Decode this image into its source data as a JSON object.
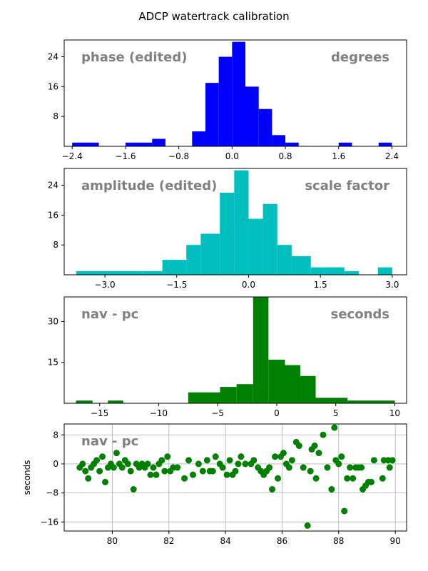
{
  "figure_title": "ADCP watertrack calibration",
  "chart_data": [
    {
      "type": "bar",
      "name": "phase",
      "color": "#0000ff",
      "annotation_left": "phase (edited)",
      "annotation_right": "degrees",
      "xlim": [
        -2.52,
        2.62
      ],
      "ylim": [
        0,
        28.5
      ],
      "xticks": [
        -2.4,
        -1.6,
        -0.8,
        0.0,
        0.8,
        1.6,
        2.4
      ],
      "xtick_labels": [
        "−2.4",
        "−1.6",
        "−0.8",
        "0.0",
        "0.8",
        "1.6",
        "2.4"
      ],
      "yticks": [
        8,
        16,
        24
      ],
      "ytick_labels": [
        "8",
        "16",
        "24"
      ],
      "bins": [
        [
          -2.4,
          -2.0,
          1
        ],
        [
          -1.6,
          -1.2,
          1
        ],
        [
          -1.2,
          -1.0,
          2
        ],
        [
          -0.6,
          -0.4,
          4
        ],
        [
          -0.4,
          -0.2,
          17
        ],
        [
          -0.2,
          0.0,
          24
        ],
        [
          0.0,
          0.2,
          28
        ],
        [
          0.2,
          0.4,
          16
        ],
        [
          0.4,
          0.6,
          10
        ],
        [
          0.6,
          0.8,
          3
        ],
        [
          0.8,
          1.0,
          1
        ],
        [
          1.6,
          1.8,
          1
        ],
        [
          2.2,
          2.4,
          1
        ]
      ]
    },
    {
      "type": "bar",
      "name": "amplitude",
      "color": "#00bfbf",
      "annotation_left": "amplitude (edited)",
      "annotation_right": "scale factor",
      "xlim": [
        -3.85,
        3.3
      ],
      "ylim": [
        0,
        28.5
      ],
      "xticks": [
        -3.0,
        -1.5,
        0.0,
        1.5,
        3.0
      ],
      "xtick_labels": [
        "−3.0",
        "−1.5",
        "0.0",
        "1.5",
        "3.0"
      ],
      "yticks": [
        8,
        16,
        24
      ],
      "ytick_labels": [
        "8",
        "16",
        "24"
      ],
      "bins": [
        [
          -3.6,
          -2.6,
          1
        ],
        [
          -2.6,
          -2.2,
          1
        ],
        [
          -2.2,
          -1.8,
          1
        ],
        [
          -1.8,
          -1.3,
          4
        ],
        [
          -1.3,
          -1.0,
          8
        ],
        [
          -1.0,
          -0.6,
          11
        ],
        [
          -0.6,
          -0.3,
          22
        ],
        [
          -0.3,
          0.0,
          28
        ],
        [
          0.0,
          0.3,
          15
        ],
        [
          0.3,
          0.6,
          19
        ],
        [
          0.6,
          0.9,
          8
        ],
        [
          0.9,
          1.3,
          5
        ],
        [
          1.3,
          1.6,
          2
        ],
        [
          1.6,
          2.0,
          2
        ],
        [
          2.0,
          2.3,
          1
        ],
        [
          2.7,
          3.0,
          2
        ]
      ]
    },
    {
      "type": "bar",
      "name": "nav - pc",
      "color": "#008000",
      "annotation_left": "nav - pc",
      "annotation_right": "seconds",
      "xlim": [
        -18,
        11
      ],
      "ylim": [
        0,
        39
      ],
      "xticks": [
        -15,
        -10,
        -5,
        0,
        5,
        10
      ],
      "xtick_labels": [
        "−15",
        "−10",
        "−5",
        "0",
        "5",
        "10"
      ],
      "yticks": [
        15,
        30
      ],
      "ytick_labels": [
        "15",
        "30"
      ],
      "bins": [
        [
          -17,
          -15.6,
          1
        ],
        [
          -14.3,
          -13,
          1
        ],
        [
          -7.5,
          -4.8,
          4
        ],
        [
          -4.8,
          -3.4,
          6
        ],
        [
          -3.4,
          -2.0,
          7
        ],
        [
          -2.0,
          -0.7,
          39
        ],
        [
          -0.7,
          0.7,
          16
        ],
        [
          0.7,
          2.0,
          14
        ],
        [
          2.0,
          3.3,
          10
        ],
        [
          3.3,
          6.0,
          2
        ],
        [
          6.0,
          10.0,
          1
        ]
      ]
    },
    {
      "type": "scatter",
      "name": "nav - pc series",
      "color": "#008000",
      "annotation_left": "nav - pc",
      "ylabel": "seconds",
      "grid": true,
      "xlim": [
        78.3,
        90.4
      ],
      "ylim": [
        -18.5,
        11
      ],
      "xticks": [
        80,
        82,
        84,
        86,
        88,
        90
      ],
      "xtick_labels": [
        "80",
        "82",
        "84",
        "86",
        "88",
        "90"
      ],
      "yticks": [
        8,
        0,
        -8,
        -16
      ],
      "ytick_labels": [
        "8",
        "0",
        "−8",
        "−16"
      ],
      "points": [
        [
          78.85,
          -1
        ],
        [
          78.95,
          0
        ],
        [
          79.05,
          -2
        ],
        [
          79.15,
          -4
        ],
        [
          79.25,
          -1
        ],
        [
          79.35,
          0
        ],
        [
          79.45,
          1
        ],
        [
          79.55,
          -2
        ],
        [
          79.65,
          2
        ],
        [
          79.75,
          -5
        ],
        [
          79.85,
          -1
        ],
        [
          79.95,
          0
        ],
        [
          80.05,
          -1
        ],
        [
          80.15,
          3
        ],
        [
          80.25,
          0
        ],
        [
          80.35,
          -1
        ],
        [
          80.45,
          1
        ],
        [
          80.55,
          0
        ],
        [
          80.65,
          -2
        ],
        [
          80.75,
          -7
        ],
        [
          80.85,
          0
        ],
        [
          80.95,
          -1
        ],
        [
          81.05,
          0
        ],
        [
          81.15,
          -1
        ],
        [
          81.25,
          0
        ],
        [
          81.35,
          -3
        ],
        [
          81.45,
          -1
        ],
        [
          81.55,
          -3
        ],
        [
          81.65,
          0
        ],
        [
          81.75,
          1
        ],
        [
          81.85,
          -2
        ],
        [
          81.95,
          2
        ],
        [
          82.05,
          -2
        ],
        [
          82.15,
          -1
        ],
        [
          82.3,
          -1
        ],
        [
          82.55,
          -4
        ],
        [
          82.7,
          1
        ],
        [
          82.85,
          -3
        ],
        [
          83.05,
          0
        ],
        [
          83.2,
          -2
        ],
        [
          83.35,
          1
        ],
        [
          83.45,
          -2
        ],
        [
          83.55,
          -2
        ],
        [
          83.65,
          2
        ],
        [
          83.8,
          0
        ],
        [
          83.9,
          -1
        ],
        [
          84.05,
          -3
        ],
        [
          84.15,
          1
        ],
        [
          84.25,
          -3
        ],
        [
          84.35,
          -2
        ],
        [
          84.45,
          0
        ],
        [
          84.55,
          2
        ],
        [
          84.7,
          0
        ],
        [
          84.9,
          0
        ],
        [
          85.0,
          1
        ],
        [
          85.15,
          -1
        ],
        [
          85.25,
          -2
        ],
        [
          85.35,
          -3
        ],
        [
          85.45,
          -2
        ],
        [
          85.55,
          -1
        ],
        [
          85.65,
          -7
        ],
        [
          85.75,
          2
        ],
        [
          85.85,
          -4
        ],
        [
          85.95,
          2
        ],
        [
          86.05,
          3
        ],
        [
          86.15,
          0
        ],
        [
          86.25,
          -1
        ],
        [
          86.35,
          1
        ],
        [
          86.5,
          6
        ],
        [
          86.6,
          5
        ],
        [
          86.75,
          -1
        ],
        [
          86.9,
          -17
        ],
        [
          87.0,
          -2
        ],
        [
          87.05,
          4
        ],
        [
          87.15,
          5
        ],
        [
          87.2,
          -4
        ],
        [
          87.3,
          3
        ],
        [
          87.45,
          8
        ],
        [
          87.6,
          -1
        ],
        [
          87.75,
          -7
        ],
        [
          87.85,
          10
        ],
        [
          87.9,
          1
        ],
        [
          88.0,
          0
        ],
        [
          88.1,
          2
        ],
        [
          88.2,
          -13
        ],
        [
          88.3,
          -4
        ],
        [
          88.4,
          -1
        ],
        [
          88.5,
          -4
        ],
        [
          88.6,
          -1
        ],
        [
          88.7,
          -1
        ],
        [
          88.8,
          -1
        ],
        [
          88.85,
          -7
        ],
        [
          88.95,
          -6
        ],
        [
          89.05,
          -5
        ],
        [
          89.15,
          -5
        ],
        [
          89.25,
          1
        ],
        [
          89.55,
          -4
        ],
        [
          89.6,
          1
        ],
        [
          89.75,
          1
        ],
        [
          89.8,
          -1
        ],
        [
          89.9,
          1
        ]
      ]
    }
  ]
}
